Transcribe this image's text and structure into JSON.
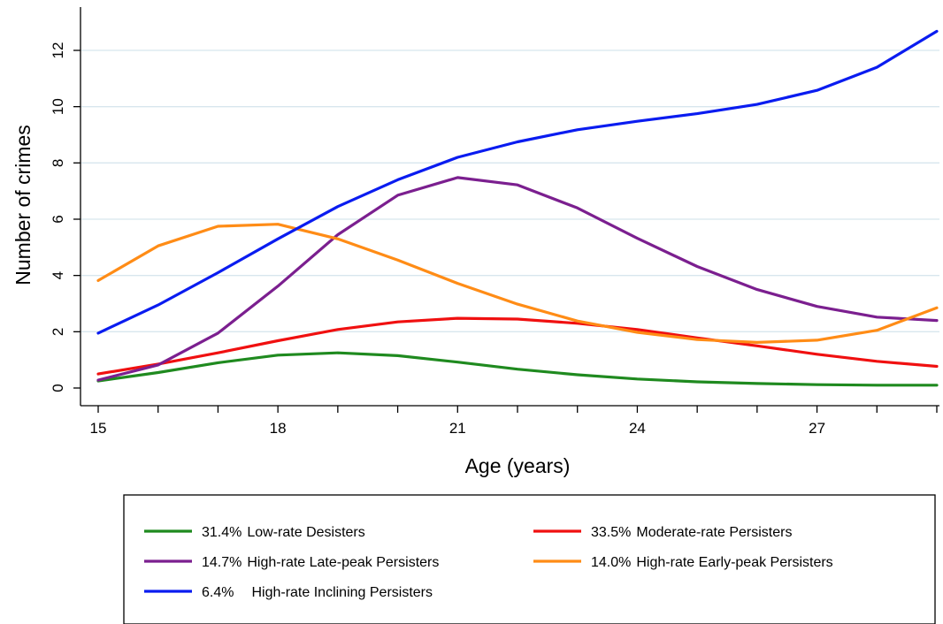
{
  "chart_data": {
    "type": "line",
    "xlabel": "Age (years)",
    "ylabel": "Number of crimes",
    "xlim": [
      15,
      29
    ],
    "ylim": [
      0,
      12
    ],
    "x": [
      15,
      16,
      17,
      18,
      19,
      20,
      21,
      22,
      23,
      24,
      25,
      26,
      27,
      28,
      29
    ],
    "xticks": [
      15,
      16,
      17,
      18,
      19,
      20,
      21,
      22,
      23,
      24,
      25,
      26,
      27,
      28,
      29
    ],
    "xtick_labels": [
      "15",
      "",
      "",
      "18",
      "",
      "",
      "21",
      "",
      "",
      "24",
      "",
      "",
      "27",
      "",
      ""
    ],
    "yticks": [
      0,
      2,
      4,
      6,
      8,
      10,
      12
    ],
    "ytick_labels": [
      "0",
      "2",
      "4",
      "6",
      "8",
      "10",
      "12"
    ],
    "grid": "horizontal",
    "legend_position": "bottom",
    "series": [
      {
        "name": "Low-rate Desisters",
        "pct": "31.4%",
        "color": "#1f8a1f",
        "values": [
          0.25,
          0.55,
          0.9,
          1.17,
          1.25,
          1.15,
          0.92,
          0.67,
          0.47,
          0.32,
          0.22,
          0.16,
          0.12,
          0.1,
          0.1
        ]
      },
      {
        "name": "Moderate-rate Persisters",
        "pct": "33.5%",
        "color": "#f01010",
        "values": [
          0.5,
          0.85,
          1.25,
          1.68,
          2.08,
          2.35,
          2.48,
          2.45,
          2.3,
          2.08,
          1.78,
          1.5,
          1.2,
          0.95,
          0.77
        ]
      },
      {
        "name": "High-rate Late-peak Persisters",
        "pct": "14.7%",
        "color": "#7b1f8f",
        "values": [
          0.28,
          0.82,
          1.95,
          3.62,
          5.45,
          6.85,
          7.48,
          7.22,
          6.4,
          5.32,
          4.32,
          3.5,
          2.9,
          2.52,
          2.4
        ]
      },
      {
        "name": "High-rate Early-peak Persisters",
        "pct": "14.0%",
        "color": "#ff8c16",
        "values": [
          3.82,
          5.05,
          5.75,
          5.82,
          5.3,
          4.55,
          3.72,
          2.98,
          2.38,
          1.98,
          1.72,
          1.62,
          1.7,
          2.05,
          2.85
        ]
      },
      {
        "name": "High-rate Inclining Persisters",
        "pct": "6.4%",
        "color": "#0a1cf0",
        "values": [
          1.95,
          2.95,
          4.1,
          5.3,
          6.45,
          7.4,
          8.2,
          8.75,
          9.18,
          9.48,
          9.75,
          10.08,
          10.58,
          11.4,
          12.68
        ]
      }
    ]
  }
}
